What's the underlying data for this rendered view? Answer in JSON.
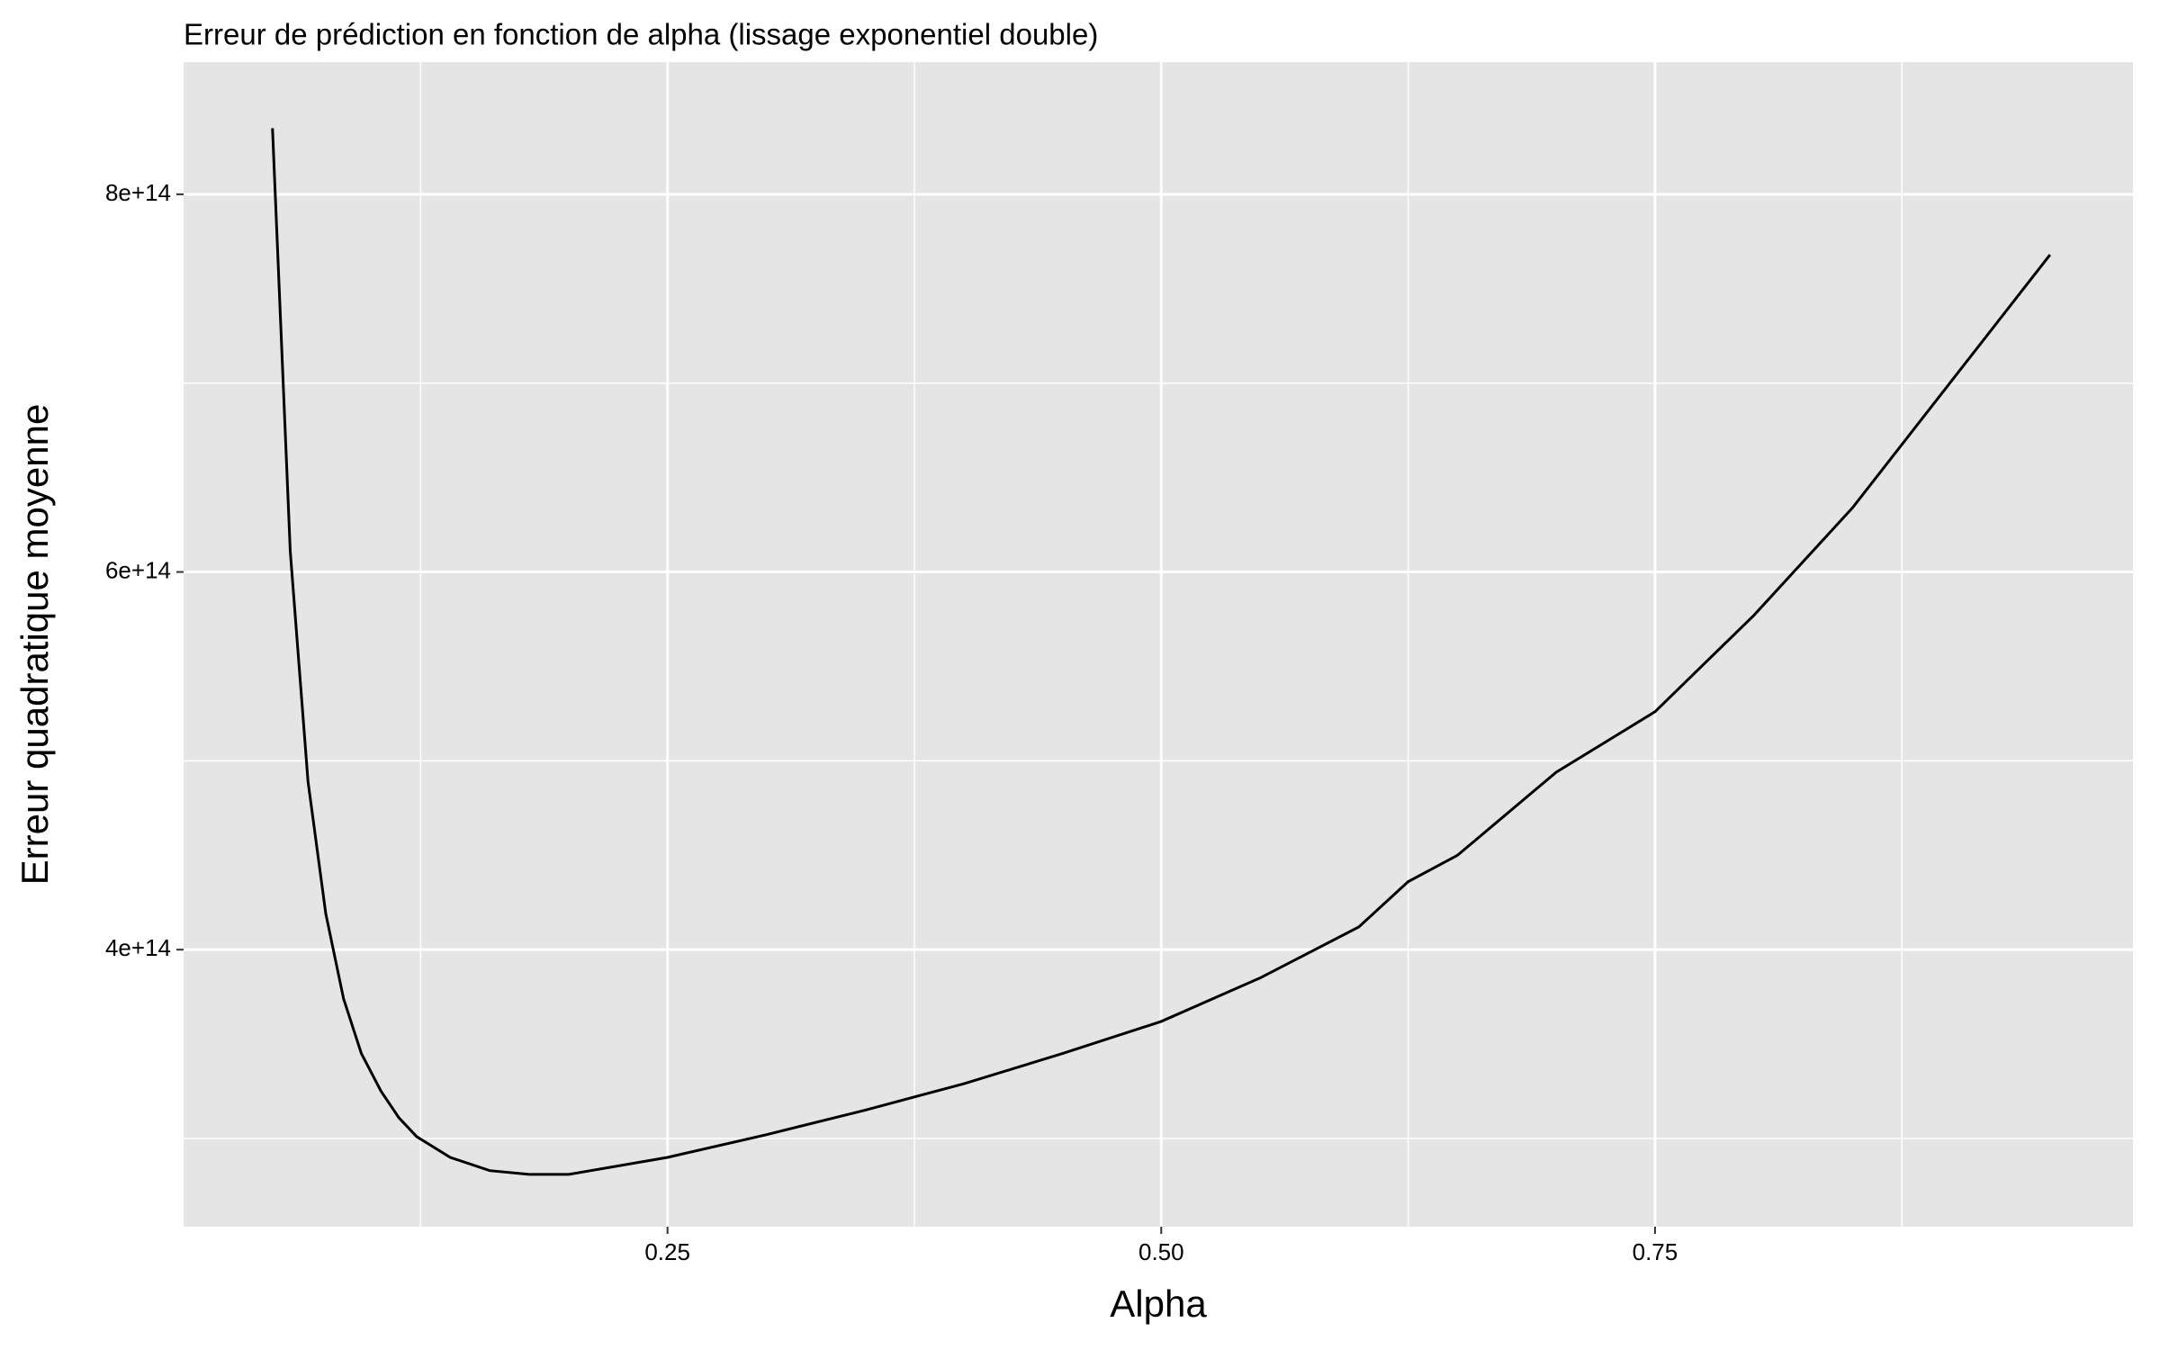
{
  "chart_data": {
    "type": "line",
    "title": "Erreur de prédiction en fonction de alpha (lissage exponentiel double)",
    "x_label": "Alpha",
    "y_label": "Erreur quadratique moyenne",
    "series": [
      {
        "color": "#000000",
        "x": [
          0.05,
          0.059,
          0.068,
          0.077,
          0.086,
          0.095,
          0.105,
          0.114,
          0.123,
          0.14,
          0.16,
          0.18,
          0.2,
          0.25,
          0.3,
          0.35,
          0.4,
          0.45,
          0.5,
          0.55,
          0.6,
          0.625,
          0.65,
          0.7,
          0.75,
          0.8,
          0.85,
          0.9,
          0.95
        ],
        "values": [
          835000000000000,
          611000000000000,
          489000000000000,
          419000000000000,
          374000000000000,
          345000000000000,
          325000000000000,
          311000000000000,
          301000000000000,
          290000000000000,
          283000000000000,
          281000000000000,
          281000000000000,
          290000000000000,
          302000000000000,
          315000000000000,
          329000000000000,
          345000000000000,
          362000000000000,
          385000000000000,
          412000000000000,
          436000000000000,
          450000000000000,
          494000000000000,
          526000000000000,
          577000000000000,
          634000000000000,
          701000000000000,
          768000000000000
        ]
      }
    ],
    "xlim": [
      0.005,
      0.992
    ],
    "ylim": [
      253300000000000,
      870000000000000
    ],
    "xticks": [
      {
        "value": 0.25,
        "label": "0.25"
      },
      {
        "value": 0.5,
        "label": "0.50"
      },
      {
        "value": 0.75,
        "label": "0.75"
      }
    ],
    "yticks": [
      {
        "value": 400000000000000,
        "label": "4e+14"
      },
      {
        "value": 600000000000000,
        "label": "6e+14"
      },
      {
        "value": 800000000000000,
        "label": "8e+14"
      }
    ],
    "x_minor_grid": [
      0.125,
      0.375,
      0.625,
      0.875
    ],
    "y_minor_grid": [
      300000000000000,
      500000000000000,
      700000000000000
    ],
    "grid": true
  }
}
